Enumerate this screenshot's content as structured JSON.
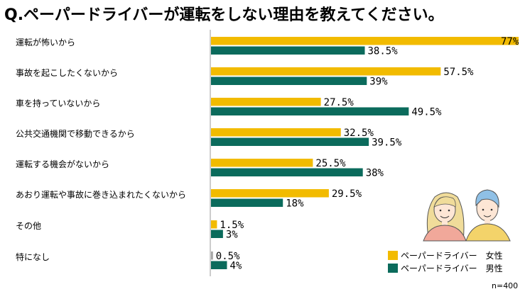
{
  "title": "Q.ペーパードライバーが運転をしない理由を教えてください。",
  "note": "n=400",
  "colors": {
    "female": "#f2bb00",
    "male": "#0b6b5c",
    "other": "#a6a6a6"
  },
  "legend": [
    {
      "label": "ペーパードライバー　女性",
      "color_key": "female"
    },
    {
      "label": "ペーパードライバー　男性",
      "color_key": "male"
    }
  ],
  "chart_data": {
    "type": "bar",
    "orientation": "horizontal",
    "title": "Q.ペーパードライバーが運転をしない理由を教えてください。",
    "xlim": [
      0,
      77
    ],
    "categories": [
      "運転が怖いから",
      "事故を起こしたくないから",
      "車を持っていないから",
      "公共交通機関で移動できるから",
      "運転する機会がないから",
      "あおり運転や事故に巻き込まれたくないから",
      "その他",
      "特になし"
    ],
    "series": [
      {
        "name": "ペーパードライバー　女性",
        "values": [
          77,
          57.5,
          27.5,
          32.5,
          25.5,
          29.5,
          1.5,
          0.5
        ],
        "labels": [
          "77%",
          "57.5%",
          "27.5%",
          "32.5%",
          "25.5%",
          "29.5%",
          "1.5%",
          "0.5%"
        ]
      },
      {
        "name": "ペーパードライバー　男性",
        "values": [
          38.5,
          39,
          49.5,
          39.5,
          38,
          18,
          3,
          4
        ],
        "labels": [
          "38.5%",
          "39%",
          "49.5%",
          "39.5%",
          "38%",
          "18%",
          "3%",
          "4%"
        ]
      }
    ],
    "grid": false,
    "legend_position": "bottom-right"
  }
}
